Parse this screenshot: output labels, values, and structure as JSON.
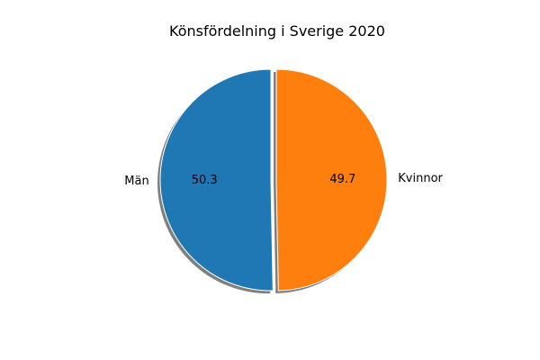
{
  "chart_data": {
    "type": "pie",
    "title": "Könsfördelning i Sverige 2020",
    "slices": [
      {
        "label": "Män",
        "value": 50.3,
        "value_label": "50.3",
        "color": "#1f77b4",
        "exploded": true
      },
      {
        "label": "Kvinnor",
        "value": 49.7,
        "value_label": "49.7",
        "color": "#ff7f0e",
        "exploded": true
      }
    ],
    "start_angle_deg": 90,
    "direction": "counterclockwise",
    "shadow": true,
    "legend": "none"
  }
}
